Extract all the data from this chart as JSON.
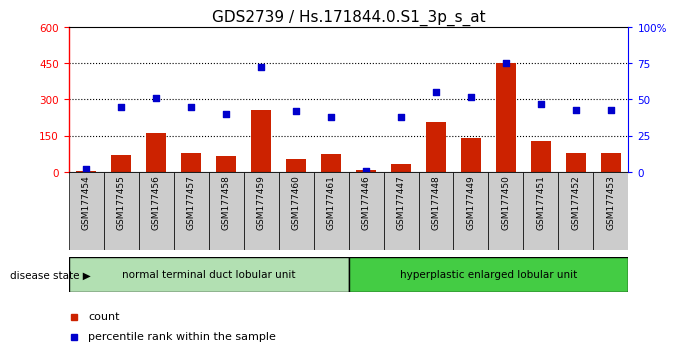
{
  "title": "GDS2739 / Hs.171844.0.S1_3p_s_at",
  "categories": [
    "GSM177454",
    "GSM177455",
    "GSM177456",
    "GSM177457",
    "GSM177458",
    "GSM177459",
    "GSM177460",
    "GSM177461",
    "GSM177446",
    "GSM177447",
    "GSM177448",
    "GSM177449",
    "GSM177450",
    "GSM177451",
    "GSM177452",
    "GSM177453"
  ],
  "counts": [
    5,
    70,
    160,
    80,
    65,
    255,
    55,
    75,
    10,
    35,
    205,
    140,
    450,
    130,
    80,
    80
  ],
  "percentiles": [
    2,
    45,
    51,
    45,
    40,
    72,
    42,
    38,
    1,
    38,
    55,
    52,
    75,
    47,
    43,
    43
  ],
  "group1_label": "normal terminal duct lobular unit",
  "group2_label": "hyperplastic enlarged lobular unit",
  "group1_count": 8,
  "group2_count": 8,
  "left_ylim": [
    0,
    600
  ],
  "right_ylim": [
    0,
    100
  ],
  "left_yticks": [
    0,
    150,
    300,
    450,
    600
  ],
  "right_yticks": [
    0,
    25,
    50,
    75,
    100
  ],
  "right_yticklabels": [
    "0",
    "25",
    "50",
    "75",
    "100%"
  ],
  "bar_color": "#cc2200",
  "dot_color": "#0000cc",
  "group1_color": "#b2e0b2",
  "group2_color": "#44cc44",
  "label_bg_color": "#cccccc",
  "legend_label_bar": "count",
  "legend_label_dot": "percentile rank within the sample",
  "disease_state_label": "disease state",
  "title_fontsize": 11,
  "tick_fontsize": 7.5
}
